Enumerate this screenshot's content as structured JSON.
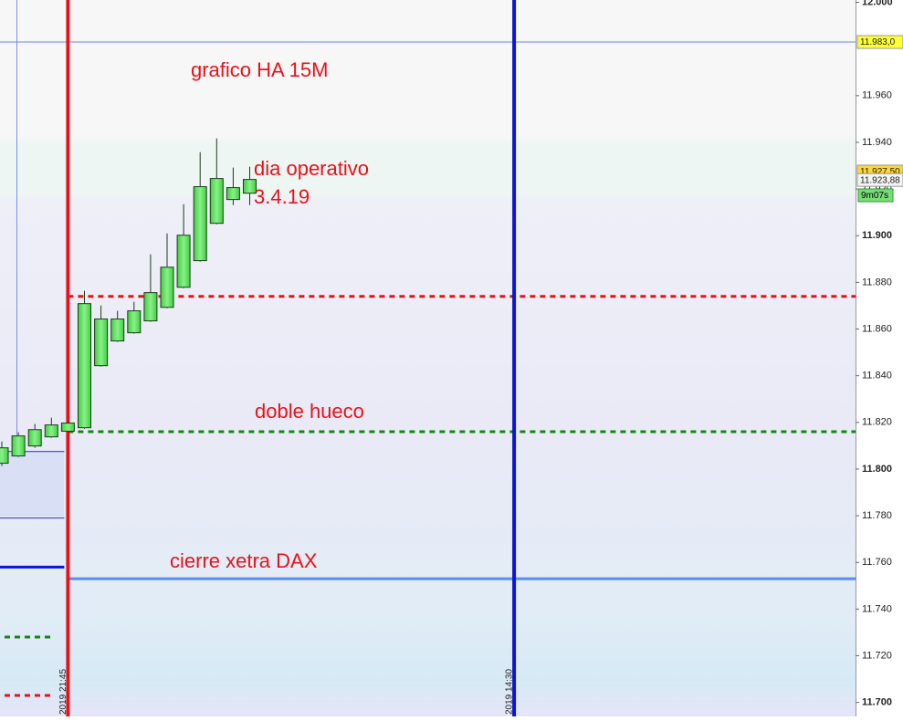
{
  "chart_data": {
    "type": "candlestick",
    "categories": [
      null,
      null,
      null,
      null,
      "2019 21:45",
      null,
      null,
      null,
      null,
      null,
      null,
      null,
      null,
      null,
      null,
      null,
      null,
      null,
      null,
      null,
      null,
      null,
      null,
      null,
      null,
      null,
      null,
      null,
      null,
      null,
      null,
      "2019 14:30"
    ],
    "series": [
      {
        "color": "#5ee65e",
        "open": [
          11802.5,
          11805.6,
          11809.9,
          11813.8,
          11816.2,
          11817.7,
          11844.3,
          11854.9,
          11858.4,
          11863.5,
          11869.3,
          11877.9,
          11889.3,
          11905.3,
          11915.5,
          11918.2,
          null,
          null,
          null,
          null,
          null,
          null,
          null,
          null,
          null,
          null,
          null,
          null,
          null,
          null,
          null,
          null
        ],
        "high": [
          11811.8,
          11815.8,
          11819.3,
          11822.0,
          11820.5,
          11876.4,
          11870.1,
          11867.8,
          11871.7,
          11892.0,
          11901.0,
          11913.5,
          11935.8,
          11941.7,
          11929.2,
          11929.6,
          null,
          null,
          null,
          null,
          null,
          null,
          null,
          null,
          null,
          null,
          null,
          null,
          null,
          null,
          null,
          null
        ],
        "low": [
          11801.3,
          11805.2,
          11809.1,
          11813.4,
          11815.8,
          11817.3,
          11843.9,
          11854.5,
          11858.0,
          11863.1,
          11868.9,
          11877.5,
          11888.9,
          11904.9,
          11913.1,
          11913.1,
          null,
          null,
          null,
          null,
          null,
          null,
          null,
          null,
          null,
          null,
          null,
          null,
          null,
          null,
          null,
          null
        ],
        "close": [
          11809.1,
          11814.2,
          11816.9,
          11818.9,
          11819.7,
          11870.9,
          11864.3,
          11864.3,
          11867.8,
          11875.6,
          11886.5,
          11900.2,
          11921.0,
          11924.5,
          11920.6,
          11924.1,
          null,
          null,
          null,
          null,
          null,
          null,
          null,
          null,
          null,
          null,
          null,
          null,
          null,
          null,
          null,
          null
        ]
      }
    ],
    "ylim": [
      11694,
      12001
    ],
    "yticks": [
      {
        "value": 11700,
        "label": "11.700"
      },
      {
        "value": 11720,
        "label": "11.720"
      },
      {
        "value": 11740,
        "label": "11.740"
      },
      {
        "value": 11760,
        "label": "11.760"
      },
      {
        "value": 11780,
        "label": "11.780"
      },
      {
        "value": 11800,
        "label": "11.800"
      },
      {
        "value": 11820,
        "label": "11.820"
      },
      {
        "value": 11840,
        "label": "11.840"
      },
      {
        "value": 11860,
        "label": "11.860"
      },
      {
        "value": 11880,
        "label": "11.880"
      },
      {
        "value": 11900,
        "label": "11.900"
      },
      {
        "value": 11920,
        "label": "11.920"
      },
      {
        "value": 11940,
        "label": "11.940"
      },
      {
        "value": 11960,
        "label": "11.960"
      },
      {
        "value": 12000,
        "label": "12.000"
      }
    ],
    "vlines": [
      {
        "category": 4,
        "color": "#e8121a"
      },
      {
        "category": 31,
        "color": "#0a14d8"
      }
    ],
    "levels": [
      {
        "value": 11983,
        "color": "#6f86e8",
        "style": "thin",
        "side": "full"
      },
      {
        "value": 11874,
        "color": "#e8121a",
        "style": "dashed",
        "side": "right"
      },
      {
        "value": 11816,
        "color": "#118811",
        "style": "dashed",
        "side": "right"
      },
      {
        "value": 11753,
        "color": "#5a8cf0",
        "style": "solid",
        "side": "right"
      },
      {
        "value": 11807.5,
        "color": "#2233cc",
        "style": "thin",
        "side": "left"
      },
      {
        "value": 11779,
        "color": "#2233cc",
        "style": "thin",
        "side": "left"
      },
      {
        "value": 11758,
        "color": "#0a14d8",
        "style": "solid",
        "side": "left"
      },
      {
        "value": 11728,
        "color": "#118811",
        "style": "dashed",
        "side": "left"
      },
      {
        "value": 11703,
        "color": "#e8121a",
        "style": "dashed",
        "side": "left"
      }
    ],
    "price_labels": [
      {
        "value": 11983,
        "label": "11.983,0",
        "color": "#ffff33"
      },
      {
        "value": 11927.5,
        "label": "11.927,50",
        "color": "#ffd633"
      },
      {
        "value": 11923.88,
        "label": "11.923,88",
        "color": "#f4f4f4"
      }
    ],
    "countdown": "9m07s",
    "annotations": [
      "grafico HA 15M",
      "dia operativo",
      "3.4.19",
      "doble hueco",
      "cierre xetra DAX"
    ]
  }
}
